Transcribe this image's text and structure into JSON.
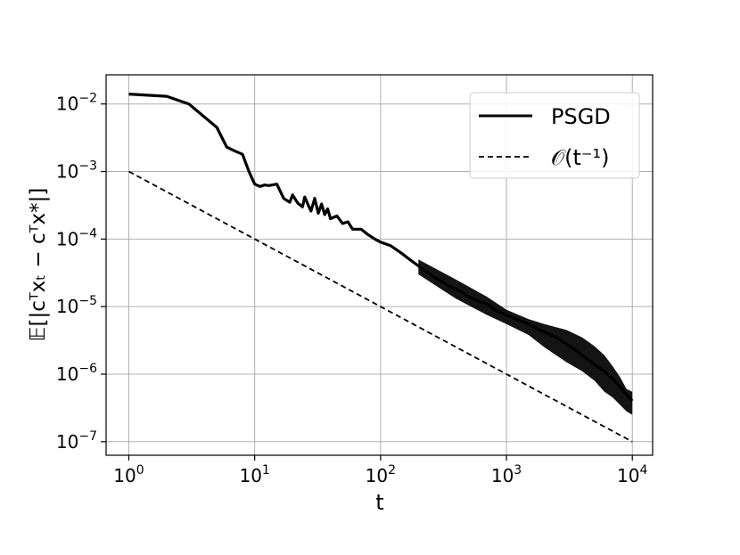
{
  "chart_data": {
    "type": "line",
    "xscale": "log",
    "yscale": "log",
    "xlim": [
      0.66,
      14500
    ],
    "ylim": [
      6.3e-08,
      0.027
    ],
    "grid": true,
    "title": "",
    "xlabel": "t",
    "ylabel": "𝔼[|cᵀxₜ − cᵀx*|]",
    "legend_position": "top-right",
    "xticks": [
      {
        "value": 1,
        "base": "10",
        "exp": "0"
      },
      {
        "value": 10,
        "base": "10",
        "exp": "1"
      },
      {
        "value": 100,
        "base": "10",
        "exp": "2"
      },
      {
        "value": 1000,
        "base": "10",
        "exp": "3"
      },
      {
        "value": 10000,
        "base": "10",
        "exp": "4"
      }
    ],
    "yticks": [
      {
        "value": 1e-07,
        "base": "10",
        "exp": "−7"
      },
      {
        "value": 1e-06,
        "base": "10",
        "exp": "−6"
      },
      {
        "value": 1e-05,
        "base": "10",
        "exp": "−5"
      },
      {
        "value": 0.0001,
        "base": "10",
        "exp": "−4"
      },
      {
        "value": 0.001,
        "base": "10",
        "exp": "−3"
      },
      {
        "value": 0.01,
        "base": "10",
        "exp": "−2"
      }
    ],
    "series": [
      {
        "name": "PSGD",
        "style": "solid",
        "color": "#000000",
        "x": [
          1,
          2,
          3,
          5,
          6,
          7,
          8,
          9,
          10,
          11,
          12,
          13,
          15,
          17,
          19,
          20,
          22,
          24,
          25,
          27,
          28,
          30,
          32,
          34,
          36,
          38,
          40,
          45,
          50,
          55,
          60,
          70,
          80,
          90,
          100,
          120,
          150,
          170,
          200,
          230,
          260,
          300,
          350,
          400,
          450,
          500,
          600,
          700,
          800,
          1000,
          1200,
          1500,
          1700,
          2000,
          2500,
          3000,
          3500,
          4000,
          5000,
          6000,
          7000,
          8000,
          9000,
          10000
        ],
        "y": [
          0.014,
          0.013,
          0.01,
          0.0045,
          0.0023,
          0.002,
          0.0018,
          0.001,
          0.00065,
          0.0006,
          0.00063,
          0.00062,
          0.00065,
          0.0004,
          0.00035,
          0.00045,
          0.00034,
          0.0003,
          0.00042,
          0.0003,
          0.00026,
          0.0004,
          0.00024,
          0.00033,
          0.00023,
          0.00028,
          0.0002,
          0.00022,
          0.00017,
          0.00018,
          0.00014,
          0.00014,
          0.000115,
          0.0001,
          9e-05,
          8e-05,
          6e-05,
          5e-05,
          4e-05,
          3.3e-05,
          2.8e-05,
          2.4e-05,
          2e-05,
          1.8e-05,
          1.6e-05,
          1.4e-05,
          1.2e-05,
          1.1e-05,
          9e-06,
          7.5e-06,
          6.5e-06,
          5.5e-06,
          4.8e-06,
          4.2e-06,
          3.5e-06,
          2.8e-06,
          2.3e-06,
          1.9e-06,
          1.4e-06,
          1.1e-06,
          8.5e-07,
          6.5e-07,
          5e-07,
          4e-07
        ],
        "band_x": [
          200,
          400,
          700,
          1000,
          1500,
          2000,
          3000,
          4000,
          5000,
          6000,
          7000,
          8000,
          9000,
          10000
        ],
        "band_low": [
          3e-05,
          1.3e-05,
          7.5e-06,
          5.5e-06,
          3.8e-06,
          2.5e-06,
          1.5e-06,
          1.1e-06,
          8e-07,
          5.5e-07,
          4.5e-07,
          3.5e-07,
          2.8e-07,
          2.5e-07
        ],
        "band_high": [
          5e-05,
          2.5e-05,
          1.4e-05,
          9e-06,
          6.5e-06,
          5.5e-06,
          4.5e-06,
          3.5e-06,
          2.6e-06,
          1.9e-06,
          1.3e-06,
          9e-07,
          6e-07,
          5.5e-07
        ]
      },
      {
        "name": "𝒪(t⁻¹)",
        "style": "dashed",
        "color": "#000000",
        "x": [
          1,
          10000
        ],
        "y": [
          0.001,
          1e-07
        ]
      }
    ]
  }
}
